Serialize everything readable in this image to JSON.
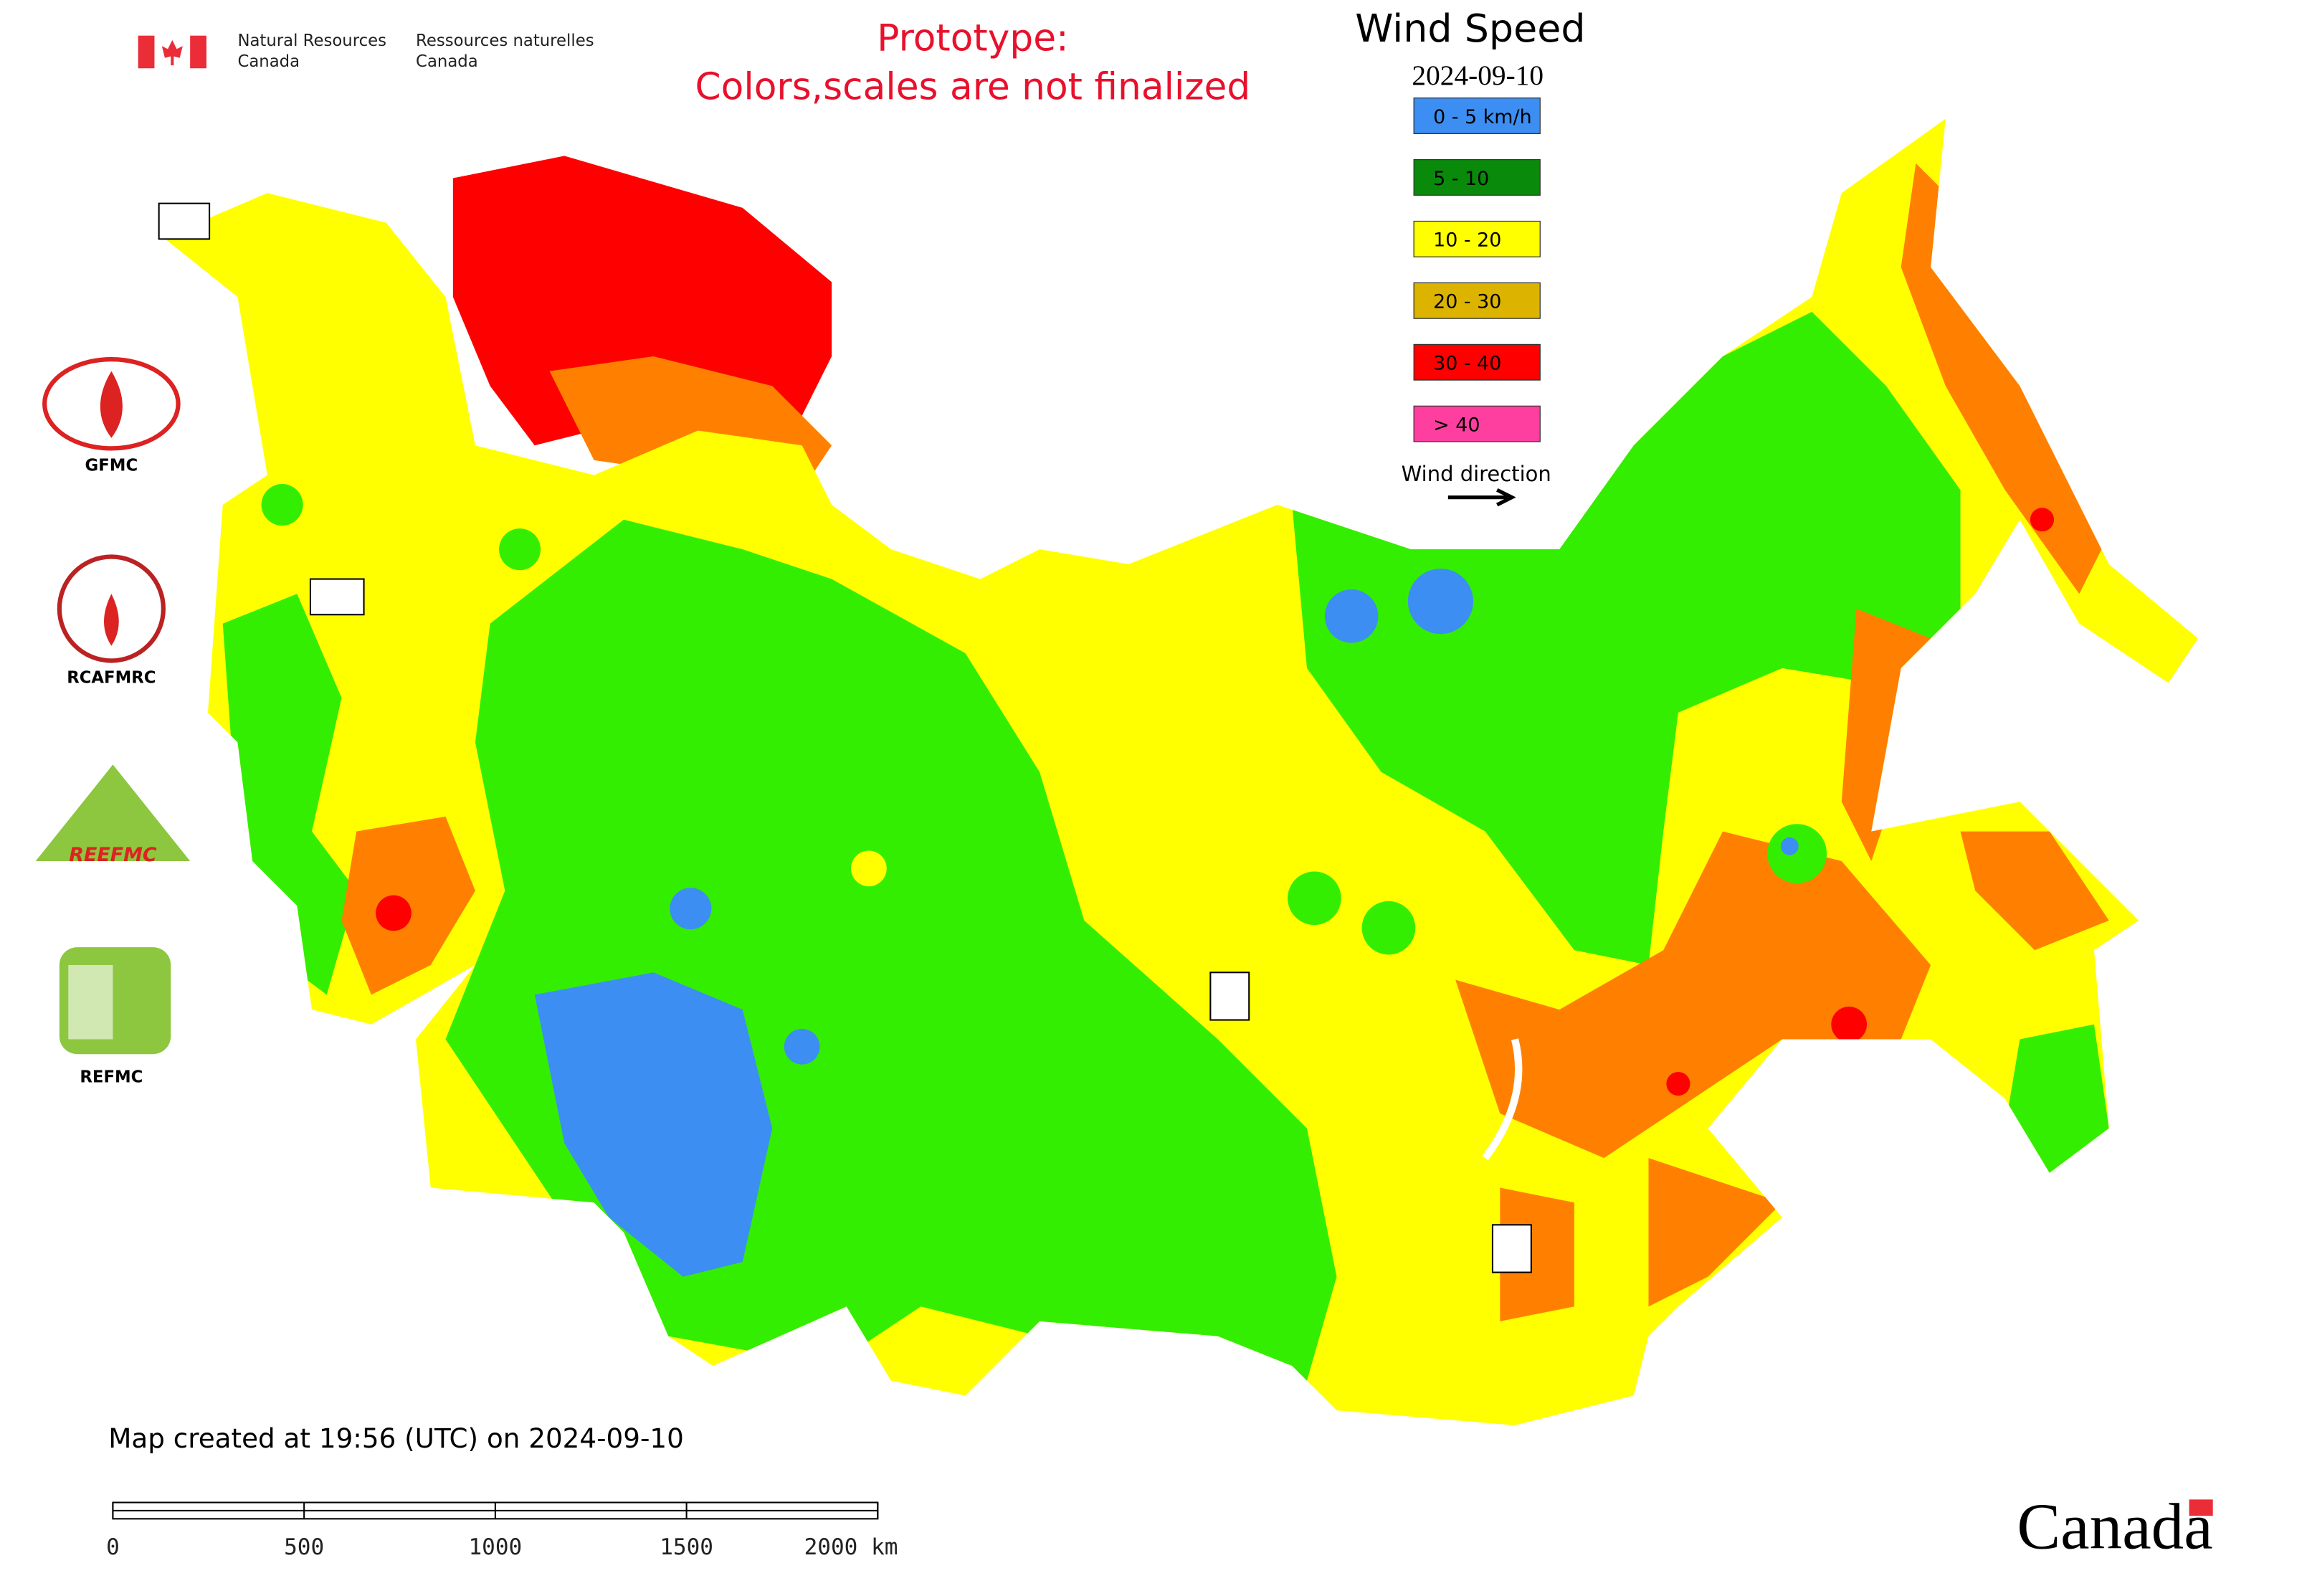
{
  "agency": {
    "en_line1": "Natural Resources",
    "en_line2": "Canada",
    "fr_line1": "Ressources naturelles",
    "fr_line2": "Canada"
  },
  "notice": {
    "line1": "Prototype:",
    "line2": "Colors,scales are not finalized"
  },
  "legend": {
    "title": "Wind Speed",
    "date": "2024-09-10",
    "items": [
      {
        "label": "0 - 5 km/h",
        "color": "#3d8ef2"
      },
      {
        "label": "5 - 10",
        "color": "#0a8a0a"
      },
      {
        "label": "10 - 20",
        "color": "#ffff00"
      },
      {
        "label": "20 - 30",
        "color": "#dcb400"
      },
      {
        "label": "30 - 40",
        "color": "#ff0000"
      },
      {
        "label": "> 40",
        "color": "#ff3fa0"
      }
    ],
    "direction_label": "Wind direction"
  },
  "logos": {
    "gfmc": "GFMC",
    "rcafmrc": "RCAFMRC",
    "reefmc": "REEFMC",
    "refmc": "REFMC"
  },
  "footer": {
    "created": "Map created at 19:56 (UTC) on 2024-09-10",
    "scale_labels": [
      "0",
      "500",
      "1000",
      "1500",
      "2000 km"
    ],
    "wordmark": "Canada"
  }
}
